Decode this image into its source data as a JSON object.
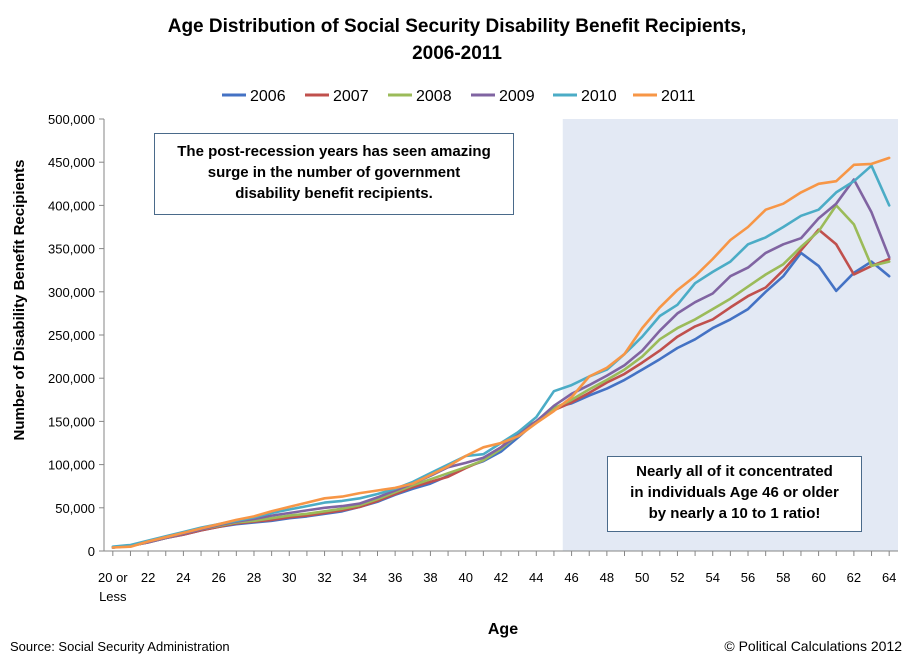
{
  "chart_data": {
    "type": "line",
    "title_lines": [
      "Age Distribution of Social Security Disability Benefit Recipients,",
      "2006-2011"
    ],
    "xlabel": "Age",
    "ylabel": "Number of Disability Benefit Recipients",
    "ylim": [
      0,
      500000
    ],
    "yticks": [
      0,
      50000,
      100000,
      150000,
      200000,
      250000,
      300000,
      350000,
      400000,
      450000,
      500000
    ],
    "ytick_labels": [
      "0",
      "50,000",
      "100,000",
      "150,000",
      "200,000",
      "250,000",
      "300,000",
      "350,000",
      "400,000",
      "450,000",
      "500,000"
    ],
    "x": [
      20,
      21,
      22,
      23,
      24,
      25,
      26,
      27,
      28,
      29,
      30,
      31,
      32,
      33,
      34,
      35,
      36,
      37,
      38,
      39,
      40,
      41,
      42,
      43,
      44,
      45,
      46,
      47,
      48,
      49,
      50,
      51,
      52,
      53,
      54,
      55,
      56,
      57,
      58,
      59,
      60,
      61,
      62,
      63,
      64
    ],
    "xtick_labels": [
      {
        "x": 20,
        "lines": [
          "20 or",
          "Less"
        ]
      },
      {
        "x": 22,
        "lines": [
          "22"
        ]
      },
      {
        "x": 24,
        "lines": [
          "24"
        ]
      },
      {
        "x": 26,
        "lines": [
          "26"
        ]
      },
      {
        "x": 28,
        "lines": [
          "28"
        ]
      },
      {
        "x": 30,
        "lines": [
          "30"
        ]
      },
      {
        "x": 32,
        "lines": [
          "32"
        ]
      },
      {
        "x": 34,
        "lines": [
          "34"
        ]
      },
      {
        "x": 36,
        "lines": [
          "36"
        ]
      },
      {
        "x": 38,
        "lines": [
          "38"
        ]
      },
      {
        "x": 40,
        "lines": [
          "40"
        ]
      },
      {
        "x": 42,
        "lines": [
          "42"
        ]
      },
      {
        "x": 44,
        "lines": [
          "44"
        ]
      },
      {
        "x": 46,
        "lines": [
          "46"
        ]
      },
      {
        "x": 48,
        "lines": [
          "48"
        ]
      },
      {
        "x": 50,
        "lines": [
          "50"
        ]
      },
      {
        "x": 52,
        "lines": [
          "52"
        ]
      },
      {
        "x": 54,
        "lines": [
          "54"
        ]
      },
      {
        "x": 56,
        "lines": [
          "56"
        ]
      },
      {
        "x": 58,
        "lines": [
          "58"
        ]
      },
      {
        "x": 60,
        "lines": [
          "60"
        ]
      },
      {
        "x": 62,
        "lines": [
          "62"
        ]
      },
      {
        "x": 64,
        "lines": [
          "64"
        ]
      }
    ],
    "shaded_region": {
      "x_start": 45.5,
      "x_end": 64.5,
      "color": "#e3e9f4"
    },
    "grid": false,
    "legend_position": "top",
    "series": [
      {
        "name": "2006",
        "color": "#4472c4",
        "values": [
          4000,
          6000,
          10000,
          15000,
          19000,
          24000,
          28000,
          31000,
          33000,
          35000,
          38000,
          40000,
          43000,
          46000,
          51000,
          57000,
          65000,
          72000,
          78000,
          87000,
          97000,
          104000,
          115000,
          132000,
          150000,
          166000,
          171000,
          180000,
          188000,
          198000,
          210000,
          222000,
          235000,
          245000,
          258000,
          268000,
          280000,
          300000,
          318000,
          345000,
          330000,
          301000,
          322000,
          335000,
          318000
        ]
      },
      {
        "name": "2007",
        "color": "#c0504d",
        "values": [
          4000,
          6000,
          10000,
          15000,
          19000,
          24000,
          28000,
          32000,
          34000,
          36000,
          39000,
          41000,
          44000,
          47000,
          51000,
          58000,
          66000,
          74000,
          80000,
          86000,
          96000,
          105000,
          120000,
          138000,
          150000,
          163000,
          172000,
          183000,
          195000,
          205000,
          218000,
          232000,
          248000,
          260000,
          268000,
          282000,
          295000,
          305000,
          325000,
          348000,
          372000,
          355000,
          320000,
          330000,
          338000
        ]
      },
      {
        "name": "2008",
        "color": "#9bbb59",
        "values": [
          4000,
          6000,
          10000,
          15000,
          20000,
          25000,
          29000,
          33000,
          35000,
          38000,
          41000,
          43000,
          46000,
          49000,
          53000,
          60000,
          68000,
          76000,
          83000,
          90000,
          97000,
          105000,
          118000,
          135000,
          150000,
          165000,
          175000,
          187000,
          198000,
          210000,
          225000,
          245000,
          258000,
          268000,
          280000,
          292000,
          306000,
          320000,
          332000,
          352000,
          370000,
          400000,
          378000,
          330000,
          335000
        ]
      },
      {
        "name": "2009",
        "color": "#8064a2",
        "values": [
          4000,
          6000,
          10000,
          15000,
          20000,
          25000,
          30000,
          34000,
          37000,
          41000,
          44000,
          47000,
          50000,
          52000,
          55000,
          62000,
          70000,
          78000,
          87000,
          97000,
          102000,
          108000,
          120000,
          135000,
          150000,
          168000,
          182000,
          192000,
          203000,
          215000,
          232000,
          255000,
          275000,
          288000,
          298000,
          318000,
          328000,
          345000,
          355000,
          362000,
          385000,
          402000,
          430000,
          392000,
          340000
        ]
      },
      {
        "name": "2010",
        "color": "#4bacc6",
        "values": [
          5000,
          7000,
          12000,
          17000,
          22000,
          27000,
          31000,
          35000,
          39000,
          44000,
          48000,
          52000,
          56000,
          58000,
          61000,
          66000,
          72000,
          80000,
          90000,
          100000,
          110000,
          112000,
          125000,
          138000,
          155000,
          185000,
          192000,
          202000,
          210000,
          228000,
          248000,
          272000,
          285000,
          310000,
          323000,
          335000,
          355000,
          363000,
          375000,
          388000,
          395000,
          415000,
          428000,
          446000,
          400000
        ]
      },
      {
        "name": "2011",
        "color": "#f79646",
        "values": [
          4000,
          5000,
          11000,
          16000,
          21000,
          26000,
          31000,
          36000,
          40000,
          46000,
          51000,
          56000,
          61000,
          63000,
          67000,
          70000,
          73000,
          78000,
          88000,
          98000,
          110000,
          120000,
          125000,
          133000,
          148000,
          162000,
          178000,
          202000,
          212000,
          228000,
          258000,
          282000,
          302000,
          318000,
          338000,
          360000,
          375000,
          395000,
          402000,
          415000,
          425000,
          428000,
          447000,
          448000,
          455000
        ]
      }
    ]
  },
  "annotations": {
    "top_box": [
      "The post-recession years has seen amazing",
      "surge in the number of government",
      "disability benefit recipients."
    ],
    "bottom_box": [
      "Nearly all of it concentrated",
      "in individuals Age 46 or older",
      "by nearly a 10 to 1 ratio!"
    ]
  },
  "footer": {
    "source": "Source: Social Security Administration",
    "copyright": "© Political Calculations 2012"
  }
}
